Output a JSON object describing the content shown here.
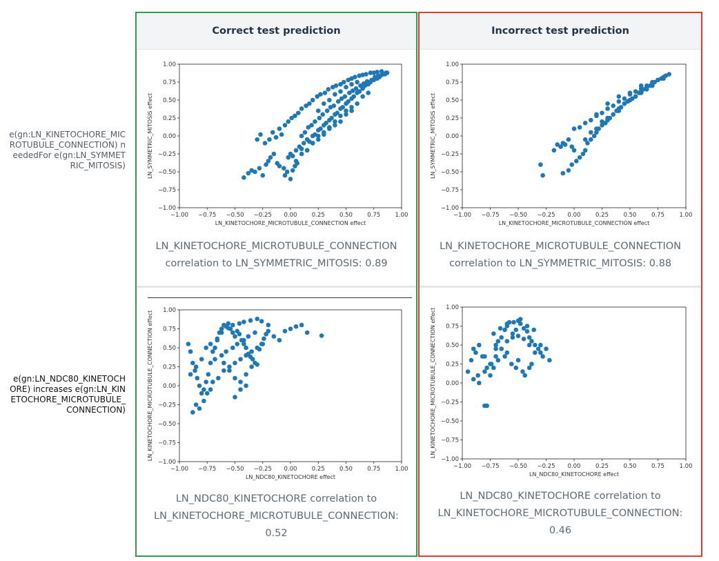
{
  "row_labels": [
    "e(gn:LN_KINETOCHORE_MICROTUBULE_CONNECTION) neededFor e(gn:LN_SYMMETRIC_MITOSIS)",
    "e(gn:LN_NDC80_KINETOCHORE) increases e(gn:LN_KINETOCHORE_MICROTUBULE_CONNECTION)"
  ],
  "columns": {
    "correct": {
      "title": "Correct test prediction",
      "border_color": "#2e9b4f"
    },
    "incorrect": {
      "title": "Incorrect test prediction",
      "border_color": "#e03c2d"
    }
  },
  "captions": {
    "top_correct": [
      "LN_KINETOCHORE_MICROTUBULE_CONNECTION",
      "correlation to LN_SYMMETRIC_MITOSIS: 0.89"
    ],
    "top_incorrect": [
      "LN_KINETOCHORE_MICROTUBULE_CONNECTION",
      "correlation to LN_SYMMETRIC_MITOSIS: 0.88"
    ],
    "bottom_correct": [
      "LN_NDC80_KINETOCHORE correlation to",
      "LN_KINETOCHORE_MICROTUBULE_CONNECTION:",
      "0.52"
    ],
    "bottom_incorrect": [
      "LN_NDC80_KINETOCHORE correlation to",
      "LN_KINETOCHORE_MICROTUBULE_CONNECTION:",
      "0.46"
    ]
  },
  "chart_data": [
    {
      "type": "scatter",
      "xlabel": "LN_KINETOCHORE_MICROTUBULE_CONNECTION effect",
      "ylabel": "LN_SYMMETRIC_MITOSIS effect",
      "xlim": [
        -1.0,
        1.0
      ],
      "ylim": [
        -1.0,
        1.0
      ],
      "ticks": [
        "-1.00",
        "-0.75",
        "-0.50",
        "-0.25",
        "0.00",
        "0.25",
        "0.50",
        "0.75",
        "1.00"
      ],
      "color": "#1f77b4",
      "x": [
        -0.42,
        -0.38,
        -0.35,
        -0.32,
        -0.28,
        -0.25,
        -0.22,
        -0.2,
        -0.18,
        -0.15,
        -0.12,
        -0.1,
        -0.3,
        -0.27,
        -0.23,
        -0.19,
        -0.16,
        -0.13,
        -0.1,
        -0.08,
        -0.06,
        -0.05,
        -0.03,
        0.0,
        0.02,
        0.04,
        0.06,
        -0.02,
        0.0,
        0.02,
        0.05,
        0.08,
        0.1,
        0.12,
        0.15,
        0.17,
        0.2,
        0.22,
        0.25,
        0.27,
        0.3,
        0.32,
        0.35,
        0.37,
        0.4,
        0.42,
        0.45,
        0.47,
        0.5,
        0.52,
        0.55,
        0.57,
        0.6,
        0.62,
        0.65,
        0.67,
        0.7,
        0.72,
        0.75,
        0.78,
        0.8,
        0.82,
        0.85,
        0.87,
        0.1,
        0.13,
        0.16,
        0.19,
        0.22,
        0.26,
        0.29,
        0.33,
        0.36,
        0.39,
        0.43,
        0.46,
        0.49,
        0.53,
        0.56,
        0.59,
        0.63,
        0.66,
        0.69,
        0.73,
        0.76,
        0.79,
        0.83,
        0.86,
        -0.05,
        -0.02,
        0.01,
        0.04,
        0.07,
        0.1,
        0.14,
        0.17,
        0.2,
        0.24,
        0.27,
        0.31,
        0.34,
        0.38,
        0.41,
        0.45,
        0.48,
        0.52,
        0.55,
        0.58,
        0.62,
        0.65,
        0.68,
        0.72,
        0.75,
        0.78,
        0.82,
        0.15,
        0.2,
        0.25,
        0.3,
        0.35,
        0.4,
        0.45,
        0.5,
        0.55,
        0.6,
        0.65,
        0.7,
        0.25,
        0.3,
        0.35,
        0.4,
        0.45,
        0.5,
        0.55,
        0.6,
        0.05,
        0.1,
        0.15,
        0.2,
        0.25,
        0.3,
        0.35,
        0.4,
        0.45,
        0.5,
        0.55
      ],
      "y": [
        -0.58,
        -0.52,
        -0.48,
        -0.5,
        -0.45,
        -0.55,
        -0.4,
        -0.35,
        -0.3,
        -0.25,
        -0.38,
        -0.42,
        -0.05,
        0.02,
        -0.1,
        -0.05,
        0.05,
        -0.02,
        0.1,
        0.02,
        -0.45,
        -0.55,
        -0.5,
        -0.6,
        -0.48,
        -0.42,
        -0.38,
        -0.3,
        -0.25,
        -0.28,
        -0.2,
        -0.15,
        -0.18,
        -0.1,
        -0.05,
        -0.08,
        0.0,
        0.02,
        0.08,
        0.1,
        0.15,
        0.18,
        0.22,
        0.25,
        0.3,
        0.32,
        0.38,
        0.4,
        0.45,
        0.48,
        0.52,
        0.55,
        0.6,
        0.62,
        0.66,
        0.7,
        0.72,
        0.75,
        0.78,
        0.8,
        0.82,
        0.85,
        0.86,
        0.88,
        0.0,
        0.05,
        0.12,
        0.15,
        0.2,
        0.25,
        0.3,
        0.35,
        0.4,
        0.42,
        0.48,
        0.52,
        0.55,
        0.6,
        0.63,
        0.66,
        0.7,
        0.73,
        0.76,
        0.78,
        0.82,
        0.84,
        0.86,
        0.88,
        0.15,
        0.2,
        0.25,
        0.28,
        0.32,
        0.38,
        0.42,
        0.45,
        0.5,
        0.55,
        0.58,
        0.6,
        0.65,
        0.68,
        0.7,
        0.72,
        0.75,
        0.78,
        0.8,
        0.82,
        0.84,
        0.85,
        0.86,
        0.88,
        0.88,
        0.89,
        0.9,
        -0.2,
        -0.1,
        0.0,
        0.05,
        0.12,
        0.2,
        0.28,
        0.35,
        0.4,
        0.45,
        0.55,
        0.6,
        0.35,
        0.45,
        0.5,
        0.58,
        0.62,
        0.68,
        0.72,
        0.75,
        -0.35,
        -0.25,
        -0.2,
        -0.1,
        -0.05,
        0.02,
        0.1,
        0.15,
        0.2,
        0.3,
        0.35
      ]
    },
    {
      "type": "scatter",
      "xlabel": "LN_KINETOCHORE_MICROTUBULE_CONNECTION effect",
      "ylabel": "LN_SYMMETRIC_MITOSIS effect",
      "xlim": [
        -1.0,
        1.0
      ],
      "ylim": [
        -1.0,
        1.0
      ],
      "ticks": [
        "-1.00",
        "-0.75",
        "-0.50",
        "-0.25",
        "0.00",
        "0.25",
        "0.50",
        "0.75",
        "1.00"
      ],
      "color": "#1f77b4",
      "x": [
        -0.28,
        -0.3,
        -0.1,
        -0.08,
        -0.05,
        -0.02,
        0.0,
        -0.12,
        -0.15,
        -0.18,
        -0.1,
        -0.05,
        -0.02,
        0.02,
        0.05,
        0.08,
        0.1,
        0.12,
        0.15,
        0.18,
        0.2,
        0.22,
        0.25,
        0.28,
        0.3,
        0.32,
        0.35,
        0.38,
        0.4,
        0.42,
        0.45,
        0.48,
        0.5,
        0.52,
        0.55,
        0.58,
        0.6,
        0.62,
        0.65,
        0.68,
        0.7,
        0.72,
        0.75,
        0.78,
        0.8,
        0.82,
        0.85,
        0.0,
        0.05,
        0.1,
        0.15,
        0.2,
        0.25,
        0.3,
        0.35,
        0.4,
        0.45,
        0.5,
        0.55,
        0.6,
        0.65,
        0.7,
        0.75,
        0.8,
        0.1,
        0.15,
        0.2,
        0.25,
        0.3,
        0.35,
        0.4,
        0.45,
        0.5,
        0.55,
        0.6,
        0.65,
        0.7,
        0.2,
        0.3,
        0.4,
        0.5,
        0.6,
        0.7
      ],
      "y": [
        -0.55,
        -0.4,
        -0.1,
        -0.12,
        -0.05,
        -0.15,
        -0.2,
        -0.15,
        -0.12,
        -0.2,
        -0.52,
        -0.48,
        -0.4,
        -0.35,
        -0.3,
        -0.25,
        -0.2,
        -0.1,
        -0.05,
        0.0,
        0.05,
        0.1,
        0.15,
        0.18,
        0.22,
        0.25,
        0.3,
        0.35,
        0.38,
        0.4,
        0.45,
        0.48,
        0.5,
        0.52,
        0.55,
        0.6,
        0.62,
        0.65,
        0.68,
        0.7,
        0.72,
        0.75,
        0.78,
        0.8,
        0.82,
        0.84,
        0.86,
        0.1,
        0.12,
        0.18,
        0.22,
        0.28,
        0.32,
        0.38,
        0.42,
        0.48,
        0.52,
        0.58,
        0.62,
        0.66,
        0.7,
        0.74,
        0.78,
        0.8,
        -0.05,
        0.05,
        0.1,
        0.2,
        0.25,
        0.3,
        0.35,
        0.45,
        0.5,
        0.55,
        0.6,
        0.65,
        0.7,
        0.3,
        0.45,
        0.55,
        0.6,
        0.7,
        0.75
      ]
    },
    {
      "type": "scatter",
      "xlabel": "LN_NDC80_KINETOCHORE effect",
      "ylabel": "LN_KINETOCHORE_MICROTUBULE_CONNECTION effect",
      "xlim": [
        -1.0,
        1.0
      ],
      "ylim": [
        -1.0,
        1.0
      ],
      "ticks": [
        "-1.00",
        "-0.75",
        "-0.50",
        "-0.25",
        "0.00",
        "0.25",
        "0.50",
        "0.75",
        "1.00"
      ],
      "color": "#1f77b4",
      "x": [
        -0.92,
        -0.9,
        -0.88,
        -0.86,
        -0.84,
        -0.82,
        -0.8,
        -0.78,
        -0.76,
        -0.74,
        -0.72,
        -0.7,
        -0.68,
        -0.66,
        -0.64,
        -0.62,
        -0.6,
        -0.58,
        -0.56,
        -0.54,
        -0.52,
        -0.5,
        -0.48,
        -0.46,
        -0.44,
        -0.42,
        -0.4,
        -0.38,
        -0.36,
        -0.34,
        -0.32,
        -0.3,
        -0.28,
        -0.26,
        -0.24,
        -0.22,
        -0.2,
        -0.15,
        -0.1,
        -0.05,
        0.0,
        0.05,
        0.1,
        0.15,
        0.28,
        -0.88,
        -0.85,
        -0.82,
        -0.78,
        -0.75,
        -0.72,
        -0.7,
        -0.65,
        -0.6,
        -0.55,
        -0.5,
        -0.45,
        -0.4,
        -0.35,
        -0.3,
        -0.25,
        -0.68,
        -0.62,
        -0.58,
        -0.52,
        -0.48,
        -0.42,
        -0.38,
        -0.32,
        -0.9,
        -0.85,
        -0.8,
        -0.76,
        -0.72,
        -0.66,
        -0.62,
        -0.56,
        -0.52,
        -0.46,
        -0.42,
        -0.36,
        -0.3,
        -0.26,
        -0.2,
        -0.6,
        -0.55,
        -0.5,
        -0.45,
        -0.4,
        -0.35,
        -0.5,
        -0.45,
        -0.4
      ],
      "y": [
        0.55,
        0.45,
        0.3,
        0.2,
        0.1,
        0.0,
        -0.1,
        -0.05,
        0.05,
        0.15,
        0.3,
        0.45,
        0.5,
        0.6,
        0.7,
        0.75,
        0.8,
        0.78,
        0.82,
        0.75,
        0.7,
        0.65,
        0.72,
        0.68,
        0.6,
        0.55,
        0.5,
        0.42,
        0.38,
        0.35,
        0.3,
        0.28,
        0.48,
        0.55,
        0.62,
        0.68,
        0.72,
        0.65,
        0.6,
        0.72,
        0.75,
        0.78,
        0.8,
        0.7,
        0.66,
        -0.35,
        -0.25,
        -0.3,
        -0.2,
        -0.1,
        -0.05,
        0.05,
        0.1,
        0.2,
        0.25,
        0.3,
        0.35,
        0.4,
        0.45,
        0.5,
        0.55,
        0.35,
        0.4,
        0.45,
        0.5,
        0.55,
        0.6,
        0.65,
        0.7,
        0.15,
        0.25,
        0.35,
        0.5,
        0.55,
        0.62,
        0.7,
        0.76,
        0.8,
        0.82,
        0.84,
        0.86,
        0.88,
        0.85,
        0.8,
        0.3,
        0.2,
        0.1,
        0.05,
        0.15,
        0.25,
        -0.15,
        -0.05,
        0.0
      ]
    },
    {
      "type": "scatter",
      "xlabel": "LN_NDC80_KINETOCHORE effect",
      "ylabel": "LN_KINETOCHORE_MICROTUBULE_CONNECTION effect",
      "xlim": [
        -1.0,
        1.0
      ],
      "ylim": [
        -1.0,
        1.0
      ],
      "ticks": [
        "-1.00",
        "-0.75",
        "-0.50",
        "-0.25",
        "0.00",
        "0.25",
        "0.50",
        "0.75",
        "1.00"
      ],
      "color": "#1f77b4",
      "x": [
        -0.95,
        -0.92,
        -0.9,
        -0.88,
        -0.85,
        -0.82,
        -0.8,
        -0.78,
        -0.75,
        -0.72,
        -0.7,
        -0.68,
        -0.65,
        -0.62,
        -0.6,
        -0.58,
        -0.55,
        -0.52,
        -0.5,
        -0.48,
        -0.45,
        -0.42,
        -0.4,
        -0.38,
        -0.35,
        -0.32,
        -0.3,
        -0.28,
        -0.25,
        -0.22,
        -0.85,
        -0.8,
        -0.75,
        -0.7,
        -0.65,
        -0.6,
        -0.55,
        -0.5,
        -0.45,
        -0.4,
        -0.35,
        -0.72,
        -0.66,
        -0.6,
        -0.54,
        -0.48,
        -0.42,
        -0.36,
        -0.3,
        -0.9,
        -0.86,
        -0.78,
        -0.74,
        -0.68,
        -0.62,
        -0.56,
        -0.52,
        -0.46,
        -0.44,
        -0.38,
        -0.8,
        -0.7,
        -0.6,
        -0.5,
        -0.4
      ],
      "y": [
        0.15,
        0.3,
        0.45,
        0.4,
        0.5,
        0.35,
        -0.3,
        -0.3,
        0.1,
        0.2,
        0.5,
        0.55,
        0.6,
        0.7,
        0.75,
        0.8,
        0.65,
        0.7,
        0.82,
        0.78,
        0.72,
        0.68,
        0.6,
        0.55,
        0.5,
        0.45,
        0.4,
        0.35,
        0.45,
        0.3,
        0.0,
        0.15,
        0.25,
        0.35,
        0.45,
        0.55,
        0.6,
        0.62,
        0.58,
        0.5,
        0.4,
        0.65,
        0.72,
        0.78,
        0.8,
        0.84,
        0.75,
        0.7,
        0.5,
        0.05,
        0.1,
        0.2,
        0.25,
        0.3,
        0.35,
        0.25,
        0.2,
        0.15,
        0.1,
        0.25,
        0.35,
        0.45,
        0.4,
        0.3,
        0.2
      ]
    }
  ]
}
